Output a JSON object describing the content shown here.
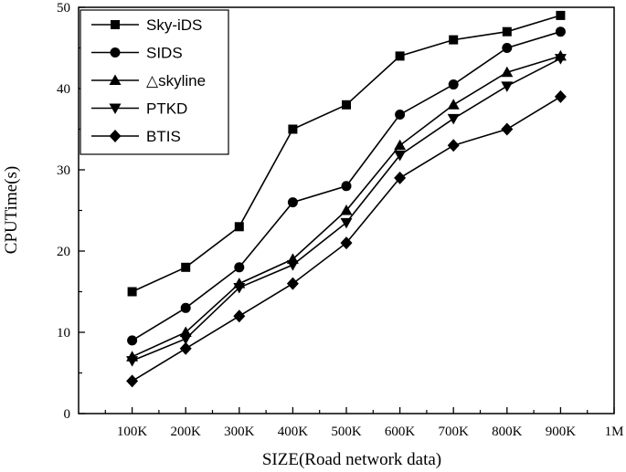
{
  "chart_data": {
    "type": "line",
    "categories": [
      "100K",
      "200K",
      "300K",
      "400K",
      "500K",
      "600K",
      "700K",
      "800K",
      "900K",
      "1M"
    ],
    "x": [
      1,
      2,
      3,
      4,
      5,
      6,
      7,
      8,
      9
    ],
    "xlim": [
      0,
      10
    ],
    "ylim": [
      0,
      50
    ],
    "yticks": [
      0,
      10,
      20,
      30,
      40,
      50
    ],
    "xlabel": "SIZE(Road network data)",
    "ylabel": "CPUTime(s)",
    "legend_position": "top-left",
    "grid": false,
    "series": [
      {
        "name": "Sky-iDS",
        "marker": "square",
        "values": [
          15,
          18,
          23,
          35,
          38,
          44,
          46,
          47,
          49
        ]
      },
      {
        "name": "SIDS",
        "marker": "circle",
        "values": [
          9,
          13,
          18,
          26,
          28,
          36.8,
          40.5,
          45,
          47
        ]
      },
      {
        "name": "△skyline",
        "marker": "triangle-up",
        "values": [
          7,
          10,
          16,
          19,
          25,
          33,
          38,
          42,
          44
        ]
      },
      {
        "name": "PTKD",
        "marker": "triangle-down",
        "values": [
          6.5,
          9.2,
          15.5,
          18.3,
          23.5,
          31.8,
          36.3,
          40.3,
          43.7
        ]
      },
      {
        "name": "BTIS",
        "marker": "diamond",
        "values": [
          4,
          8,
          12,
          16,
          21,
          29,
          33,
          35,
          39
        ]
      }
    ]
  }
}
